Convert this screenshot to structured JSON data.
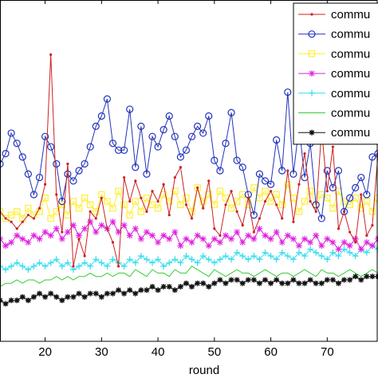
{
  "chart_data": {
    "type": "line",
    "xlabel": "round",
    "ylabel": "",
    "title": "",
    "xlim": [
      12,
      79
    ],
    "ylim": [
      0,
      100
    ],
    "x_ticks": [
      20,
      30,
      40,
      50,
      60,
      70
    ],
    "grid": false,
    "legend_position": "top-right",
    "x": [
      12,
      13,
      14,
      15,
      16,
      17,
      18,
      19,
      20,
      21,
      22,
      23,
      24,
      25,
      26,
      27,
      28,
      29,
      30,
      31,
      32,
      33,
      34,
      35,
      36,
      37,
      38,
      39,
      40,
      41,
      42,
      43,
      44,
      45,
      46,
      47,
      48,
      49,
      50,
      51,
      52,
      53,
      54,
      55,
      56,
      57,
      58,
      59,
      60,
      61,
      62,
      63,
      64,
      65,
      66,
      67,
      68,
      69,
      70,
      71,
      72,
      73,
      74,
      75,
      76,
      77,
      78,
      79
    ],
    "series": [
      {
        "name": "commu",
        "color": "#cc2222",
        "marker": "dot",
        "values": [
          38,
          36,
          35,
          33,
          35,
          37,
          36,
          39,
          46,
          84,
          43,
          32,
          52,
          22,
          30,
          25,
          38,
          36,
          42,
          33,
          29,
          22,
          48,
          41,
          47,
          42,
          38,
          44,
          41,
          46,
          37,
          48,
          51,
          40,
          36,
          45,
          39,
          47,
          33,
          31,
          40,
          44,
          38,
          34,
          42,
          32,
          36,
          41,
          44,
          40,
          36,
          50,
          35,
          46,
          55,
          41,
          38,
          62,
          44,
          57,
          33,
          38,
          32,
          29,
          43,
          31,
          34,
          55
        ]
      },
      {
        "name": "commu",
        "color": "#2233bb",
        "marker": "circle",
        "values": [
          52,
          55,
          61,
          58,
          54,
          49,
          43,
          48,
          60,
          57,
          52,
          41,
          49,
          47,
          50,
          52,
          57,
          63,
          66,
          71,
          58,
          56,
          56,
          68,
          51,
          63,
          49,
          60,
          57,
          62,
          66,
          60,
          54,
          56,
          60,
          63,
          61,
          66,
          53,
          50,
          58,
          67,
          53,
          51,
          43,
          37,
          49,
          47,
          46,
          59,
          50,
          73,
          49,
          63,
          48,
          58,
          40,
          36,
          50,
          45,
          50,
          38,
          42,
          45,
          48,
          43,
          54,
          55
        ]
      },
      {
        "name": "commu",
        "color": "#ffee33",
        "marker": "square",
        "values": [
          38,
          36,
          37,
          38,
          36,
          39,
          37,
          38,
          42,
          36,
          38,
          40,
          37,
          41,
          39,
          42,
          40,
          38,
          43,
          41,
          39,
          44,
          40,
          37,
          41,
          38,
          42,
          40,
          39,
          43,
          41,
          44,
          40,
          42,
          38,
          45,
          41,
          43,
          40,
          44,
          42,
          39,
          41,
          43,
          40,
          45,
          42,
          44,
          41,
          43,
          40,
          46,
          42,
          38,
          41,
          44,
          40,
          43,
          42,
          39,
          44,
          41,
          40,
          42,
          39,
          41,
          38,
          42
        ]
      },
      {
        "name": "commu",
        "color": "#dd22dd",
        "marker": "star",
        "values": [
          30,
          28,
          29,
          31,
          30,
          29,
          31,
          30,
          32,
          31,
          33,
          30,
          32,
          34,
          31,
          33,
          35,
          32,
          34,
          33,
          35,
          32,
          34,
          31,
          33,
          30,
          32,
          31,
          29,
          31,
          30,
          32,
          28,
          30,
          29,
          31,
          30,
          28,
          30,
          29,
          31,
          30,
          32,
          29,
          31,
          30,
          33,
          31,
          30,
          32,
          29,
          31,
          30,
          28,
          30,
          29,
          31,
          28,
          30,
          29,
          27,
          29,
          28,
          30,
          27,
          29,
          28,
          30
        ]
      },
      {
        "name": "commu",
        "color": "#33ddee",
        "marker": "plus",
        "values": [
          22,
          21,
          22,
          23,
          22,
          21,
          22,
          23,
          22,
          23,
          24,
          22,
          23,
          21,
          22,
          23,
          22,
          24,
          23,
          22,
          24,
          23,
          22,
          24,
          23,
          25,
          24,
          23,
          24,
          22,
          23,
          24,
          23,
          25,
          24,
          23,
          25,
          24,
          23,
          24,
          25,
          24,
          26,
          25,
          24,
          25,
          24,
          26,
          25,
          24,
          26,
          25,
          24,
          26,
          25,
          27,
          26,
          25,
          24,
          26,
          25,
          27,
          26,
          25,
          27,
          26,
          28,
          27
        ]
      },
      {
        "name": "commu",
        "color": "#33cc33",
        "marker": "none",
        "values": [
          16,
          17,
          17,
          18,
          17,
          18,
          18,
          17,
          18,
          18,
          19,
          18,
          19,
          18,
          19,
          19,
          20,
          19,
          19,
          20,
          19,
          20,
          20,
          19,
          21,
          20,
          19,
          21,
          20,
          20,
          19,
          21,
          20,
          20,
          22,
          21,
          20,
          19,
          21,
          20,
          19,
          20,
          21,
          20,
          20,
          19,
          20,
          21,
          20,
          19,
          20,
          20,
          19,
          20,
          21,
          20,
          19,
          21,
          20,
          20,
          19,
          20,
          21,
          20,
          19,
          20,
          21,
          20
        ]
      },
      {
        "name": "commu",
        "color": "#111111",
        "marker": "asterisk",
        "values": [
          12,
          11,
          12,
          12,
          13,
          12,
          13,
          14,
          13,
          14,
          13,
          12,
          13,
          13,
          14,
          13,
          14,
          14,
          13,
          14,
          14,
          15,
          14,
          15,
          14,
          15,
          15,
          16,
          15,
          16,
          16,
          15,
          16,
          17,
          16,
          17,
          17,
          16,
          17,
          18,
          17,
          18,
          18,
          17,
          18,
          18,
          17,
          18,
          17,
          18,
          17,
          17,
          18,
          17,
          17,
          18,
          17,
          17,
          18,
          18,
          17,
          18,
          18,
          19,
          18,
          19,
          19,
          19
        ]
      }
    ]
  }
}
